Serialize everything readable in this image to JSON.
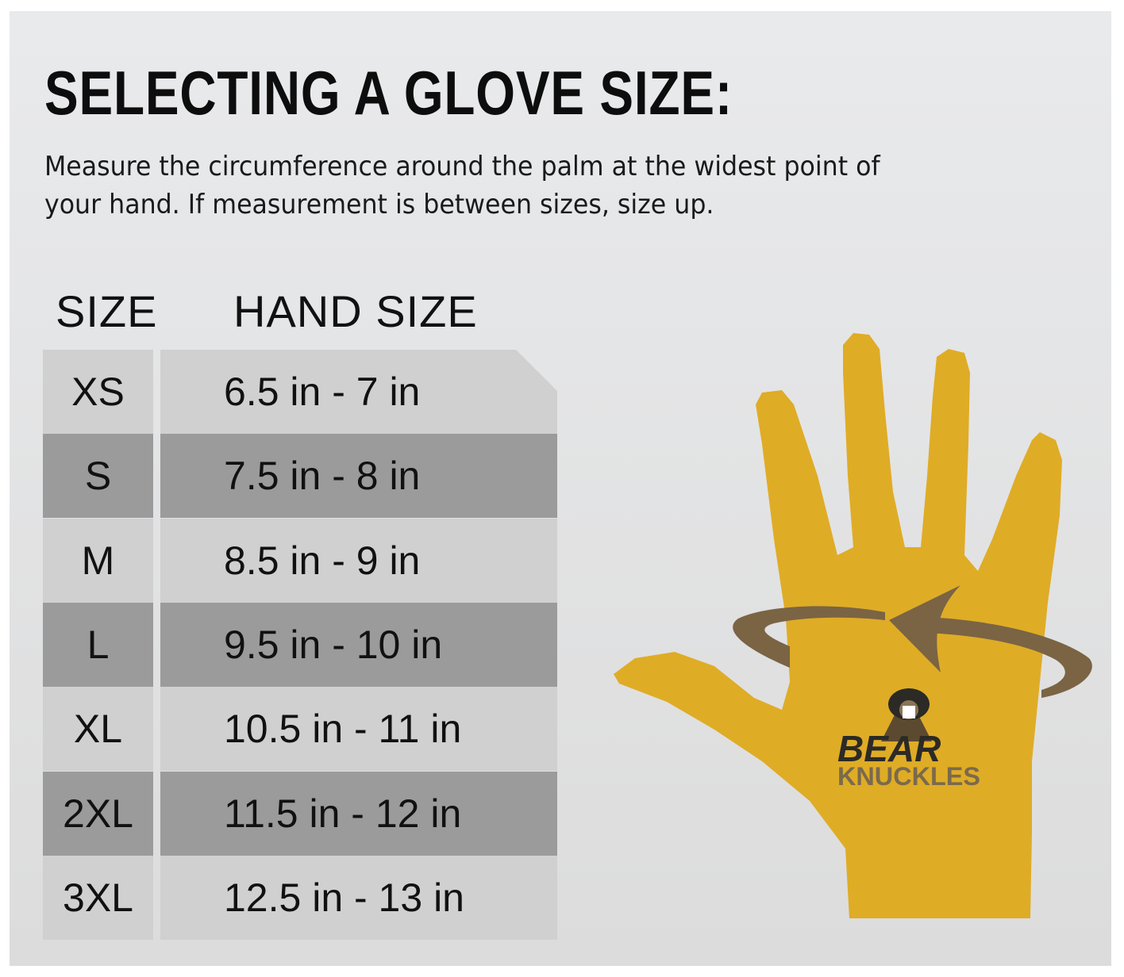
{
  "title": "SELECTING A GLOVE SIZE:",
  "subtitle": "Measure the circumference around the palm at the widest point of your hand. If measurement is between sizes, size up.",
  "table": {
    "headers": [
      "SIZE",
      "HAND SIZE"
    ],
    "rows": [
      {
        "size": "XS",
        "hand": "6.5 in - 7 in"
      },
      {
        "size": "S",
        "hand": "7.5 in - 8 in"
      },
      {
        "size": "M",
        "hand": "8.5 in - 9 in"
      },
      {
        "size": "L",
        "hand": "9.5 in - 10 in"
      },
      {
        "size": "XL",
        "hand": "10.5 in - 11 in"
      },
      {
        "size": "2XL",
        "hand": "11.5 in - 12 in"
      },
      {
        "size": "3XL",
        "hand": "12.5 in - 13 in"
      }
    ]
  },
  "logo": {
    "line1": "BEAR",
    "line2": "KNUCKLES"
  },
  "colors": {
    "hand": "#dfac26",
    "arrow": "#7a6444",
    "row_light": "#d0d0d0",
    "row_dark": "#9b9b9b"
  }
}
